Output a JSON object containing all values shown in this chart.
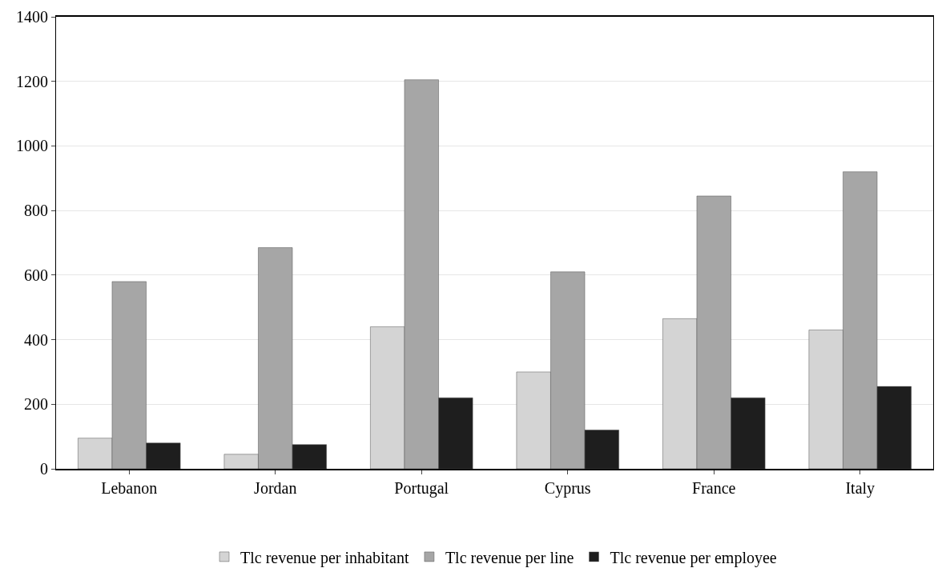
{
  "chart_data": {
    "type": "bar",
    "categories": [
      "Lebanon",
      "Jordan",
      "Portugal",
      "Cyprus",
      "France",
      "Italy"
    ],
    "series": [
      {
        "name": "Tlc revenue per inhabitant",
        "color": "#d4d4d4",
        "values": [
          95,
          45,
          440,
          300,
          465,
          430
        ]
      },
      {
        "name": "Tlc revenue per line",
        "color": "#a6a6a6",
        "values": [
          580,
          685,
          1205,
          610,
          845,
          920
        ]
      },
      {
        "name": "Tlc revenue per employee",
        "color": "#1e1e1e",
        "values": [
          80,
          75,
          220,
          120,
          220,
          255
        ]
      }
    ],
    "ylim": [
      0,
      1400
    ],
    "yticks": [
      0,
      200,
      400,
      600,
      800,
      1000,
      1200,
      1400
    ],
    "grid": "y",
    "legend": "bottom"
  }
}
